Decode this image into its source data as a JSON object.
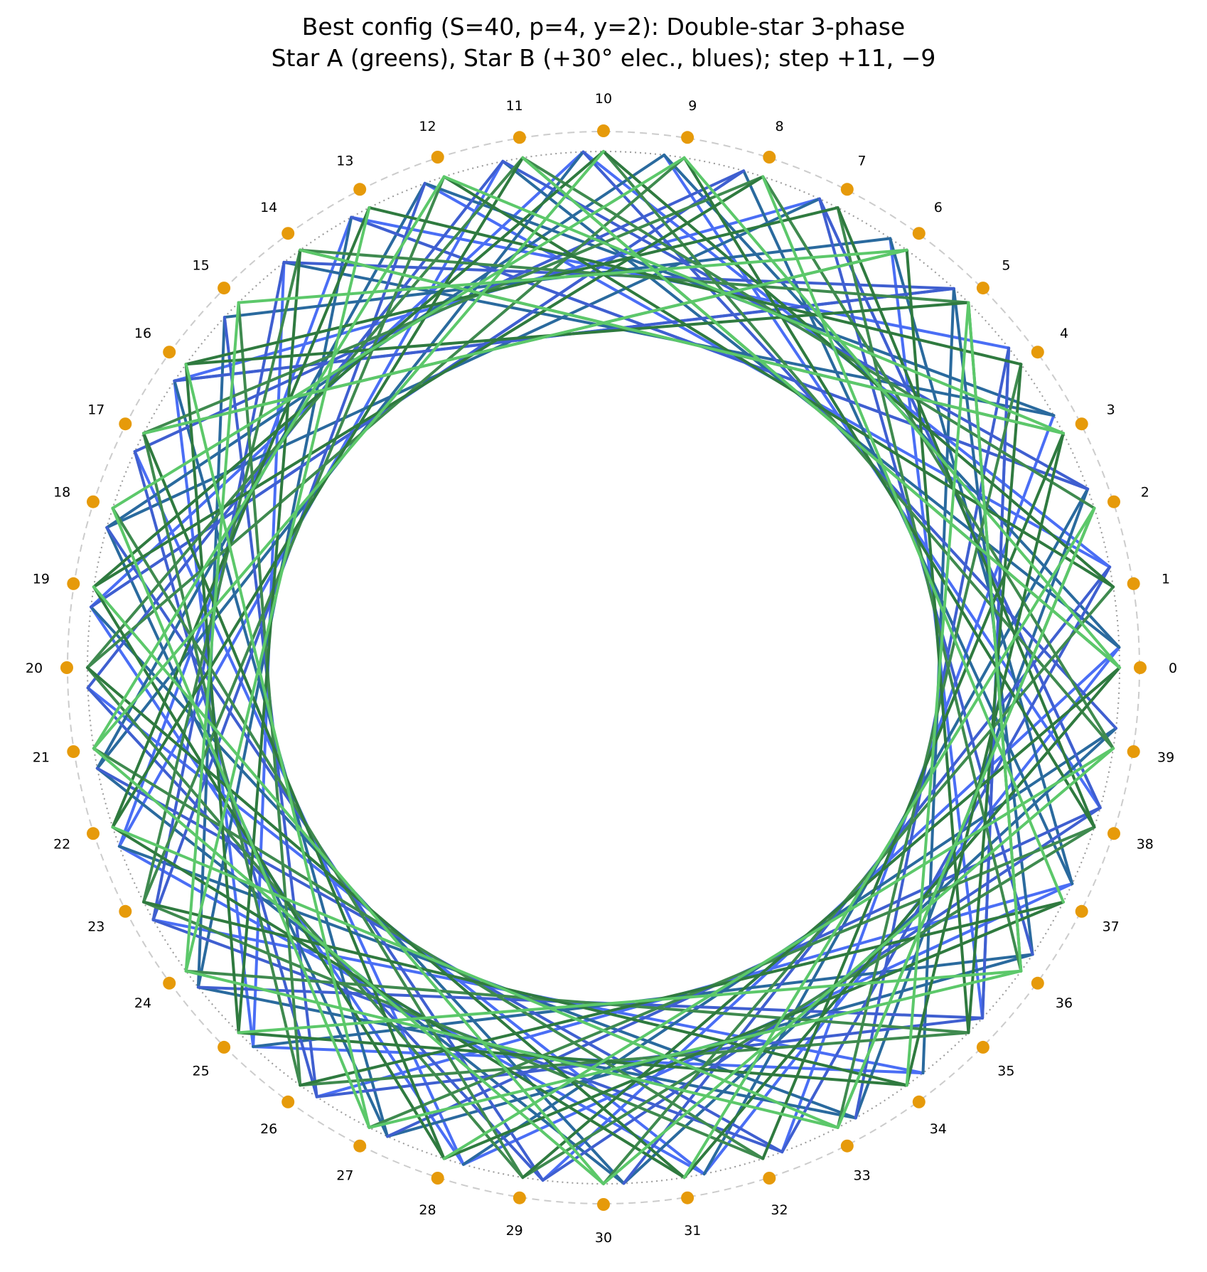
{
  "title": {
    "line1": "Best config (S=40, p=4, y=2): Double-star 3-phase",
    "line2": "Star A (greens), Star B (+30° elec., blues); step +11, −9"
  },
  "chart_data": {
    "type": "winding-diagram",
    "slots": 40,
    "poles": 4,
    "coil_pitch": 2,
    "steps": [
      11,
      -9
    ],
    "elec_offset_deg": 30,
    "slot_labels": [
      "0",
      "1",
      "2",
      "3",
      "4",
      "5",
      "6",
      "7",
      "8",
      "9",
      "10",
      "11",
      "12",
      "13",
      "14",
      "15",
      "16",
      "17",
      "18",
      "19",
      "20",
      "21",
      "22",
      "23",
      "24",
      "25",
      "26",
      "27",
      "28",
      "29",
      "30",
      "31",
      "32",
      "33",
      "34",
      "35",
      "36",
      "37",
      "38",
      "39"
    ],
    "stars": [
      {
        "name": "Star A",
        "phase_colors": [
          "#3f8a4f",
          "#2f7a3f",
          "#5cc86a"
        ],
        "angle_offset_deg": 0
      },
      {
        "name": "Star B",
        "phase_colors": [
          "#4a6ef5",
          "#2a6a9e",
          "#3f5fd0"
        ],
        "angle_offset_deg": 0
      }
    ],
    "colors": {
      "slot_dot": "#e69a0a",
      "outer_ring": "#cccccc",
      "inner_ring": "#999999"
    }
  }
}
